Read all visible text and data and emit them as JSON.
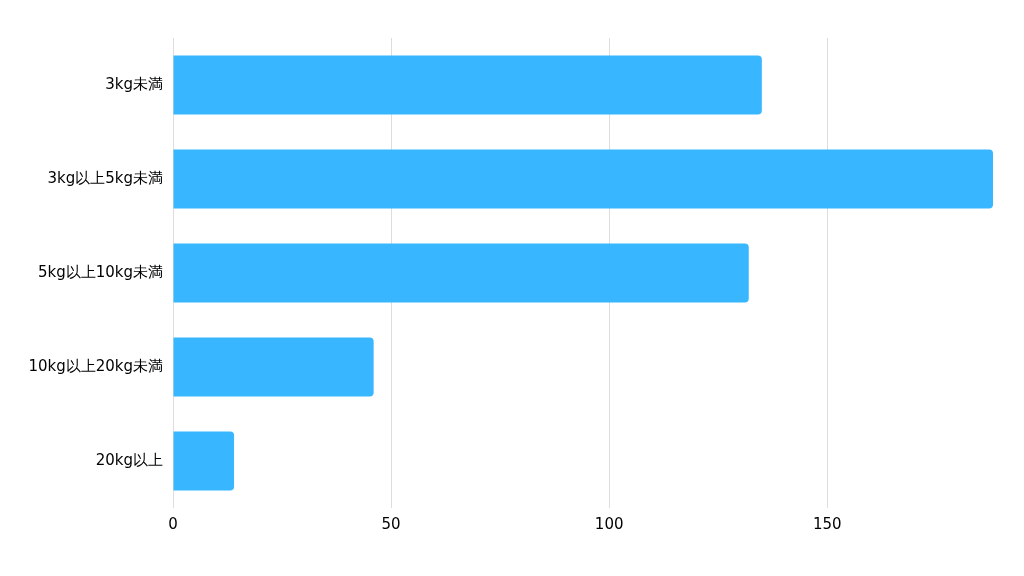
{
  "chart_data": {
    "type": "bar",
    "orientation": "horizontal",
    "categories": [
      "3kg未満",
      "3kg以上5kg未満",
      "5kg以上10kg未満",
      "10kg以上20kg未満",
      "20kg以上"
    ],
    "values": [
      135,
      188,
      132,
      46,
      14
    ],
    "color": "#38b6ff",
    "xlim": [
      0,
      188
    ],
    "xticks": [
      0,
      50,
      100,
      150
    ],
    "grid": "x",
    "legend": false
  }
}
